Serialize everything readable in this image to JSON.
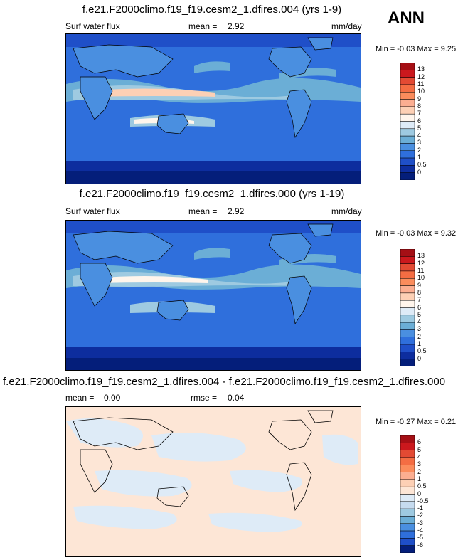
{
  "season": "ANN",
  "units": "mm/day",
  "panels": [
    {
      "title": "f.e21.F2000climo.f19_f19.cesm2_1.dfires.004 (yrs 1-9)",
      "variable": "Surf water flux",
      "stat_label": "mean =",
      "stat_value": "2.92",
      "min_max": "Min =  -0.03 Max =   9.25"
    },
    {
      "title": "f.e21.F2000climo.f19_f19.cesm2_1.dfires.000 (yrs 1-19)",
      "variable": "Surf water flux",
      "stat_label": "mean =",
      "stat_value": "2.92",
      "min_max": "Min =  -0.03 Max =   9.32"
    },
    {
      "title": "f.e21.F2000climo.f19_f19.cesm2_1.dfires.004 - f.e21.F2000climo.f19_f19.cesm2_1.dfires.000",
      "mean_label": "mean =",
      "mean_value": "0.00",
      "rmse_label": "rmse =",
      "rmse_value": "0.04",
      "min_max": "Min =  -0.27 Max =   0.21"
    }
  ],
  "chart_data": [
    {
      "type": "heatmap",
      "title": "f.e21.F2000climo.f19_f19.cesm2_1.dfires.004 (yrs 1-9)",
      "variable": "Surf water flux",
      "units": "mm/day",
      "mean": 2.92,
      "min": -0.03,
      "max": 9.25,
      "colorbar_levels": [
        "13",
        "12",
        "11",
        "10",
        "9",
        "8",
        "7",
        "6",
        "5",
        "4",
        "3",
        "2",
        "1",
        "0.5",
        "0"
      ],
      "colorbar_colors": [
        "#a50f15",
        "#cb181d",
        "#e34a33",
        "#f46d43",
        "#fb8c5c",
        "#fcae91",
        "#fdd0b5",
        "#fff5ec",
        "#deebf7",
        "#9ecae1",
        "#6baed6",
        "#4a8fe0",
        "#2f6fdc",
        "#1f4fc8",
        "#0d2d9e",
        "#041e7a"
      ]
    },
    {
      "type": "heatmap",
      "title": "f.e21.F2000climo.f19_f19.cesm2_1.dfires.000 (yrs 1-19)",
      "variable": "Surf water flux",
      "units": "mm/day",
      "mean": 2.92,
      "min": -0.03,
      "max": 9.32,
      "colorbar_levels": [
        "13",
        "12",
        "11",
        "10",
        "9",
        "8",
        "7",
        "6",
        "5",
        "4",
        "3",
        "2",
        "1",
        "0.5",
        "0"
      ],
      "colorbar_colors": [
        "#a50f15",
        "#cb181d",
        "#e34a33",
        "#f46d43",
        "#fb8c5c",
        "#fcae91",
        "#fdd0b5",
        "#fff5ec",
        "#deebf7",
        "#9ecae1",
        "#6baed6",
        "#4a8fe0",
        "#2f6fdc",
        "#1f4fc8",
        "#0d2d9e",
        "#041e7a"
      ]
    },
    {
      "type": "heatmap",
      "title": "f.e21.F2000climo.f19_f19.cesm2_1.dfires.004 - f.e21.F2000climo.f19_f19.cesm2_1.dfires.000",
      "mean": 0.0,
      "rmse": 0.04,
      "min": -0.27,
      "max": 0.21,
      "colorbar_levels": [
        "6",
        "5",
        "4",
        "3",
        "2",
        "1",
        "0.5",
        "0",
        "-0.5",
        "-1",
        "-2",
        "-3",
        "-4",
        "-5",
        "-6"
      ],
      "colorbar_colors": [
        "#a50f15",
        "#cb181d",
        "#e34a33",
        "#f46d43",
        "#fb8c5c",
        "#fcae91",
        "#fdd0b5",
        "#fde6d6",
        "#deebf7",
        "#c6dbef",
        "#9ecae1",
        "#6baed6",
        "#4a8fe0",
        "#2f6fdc",
        "#1f4fc8",
        "#041e7a"
      ]
    }
  ]
}
